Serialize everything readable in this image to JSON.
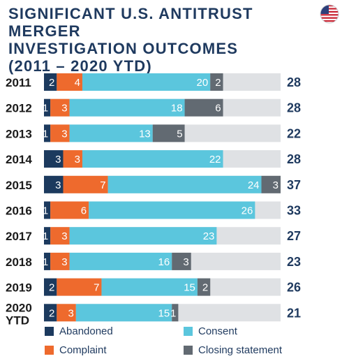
{
  "title": "SIGNIFICANT U.S. ANTITRUST MERGER\nINVESTIGATION OUTCOMES\n(2011 – 2020 YTD)",
  "flag_icon": "us-flag-icon",
  "colors": {
    "Abandoned": "#1c3a5e",
    "Complaint": "#ee6a2d",
    "Consent": "#5bc6dd",
    "Closing statement": "#626a72",
    "track": "#dfe1e4",
    "text_dark": "#1f3a5f"
  },
  "legend": {
    "abandoned": "Abandoned",
    "consent": "Consent",
    "complaint": "Complaint",
    "closing": "Closing statement"
  },
  "chart_data": {
    "type": "bar",
    "orientation": "horizontal",
    "stacked": true,
    "title": "SIGNIFICANT U.S. ANTITRUST MERGER INVESTIGATION OUTCOMES (2011 – 2020 YTD)",
    "categories": [
      "2011",
      "2012",
      "2013",
      "2014",
      "2015",
      "2016",
      "2017",
      "2018",
      "2019",
      "2020 YTD"
    ],
    "series": [
      {
        "name": "Abandoned",
        "values": [
          2,
          1,
          1,
          3,
          3,
          1,
          1,
          1,
          2,
          2
        ]
      },
      {
        "name": "Complaint",
        "values": [
          4,
          3,
          3,
          3,
          7,
          6,
          3,
          3,
          7,
          3
        ]
      },
      {
        "name": "Consent",
        "values": [
          20,
          18,
          13,
          22,
          24,
          26,
          23,
          16,
          15,
          15
        ]
      },
      {
        "name": "Closing statement",
        "values": [
          2,
          6,
          5,
          0,
          3,
          0,
          0,
          3,
          2,
          1
        ]
      }
    ],
    "totals": [
      28,
      28,
      22,
      28,
      37,
      33,
      27,
      23,
      26,
      21
    ],
    "xlim": [
      0,
      37
    ],
    "legend_position": "bottom",
    "grid": false
  }
}
